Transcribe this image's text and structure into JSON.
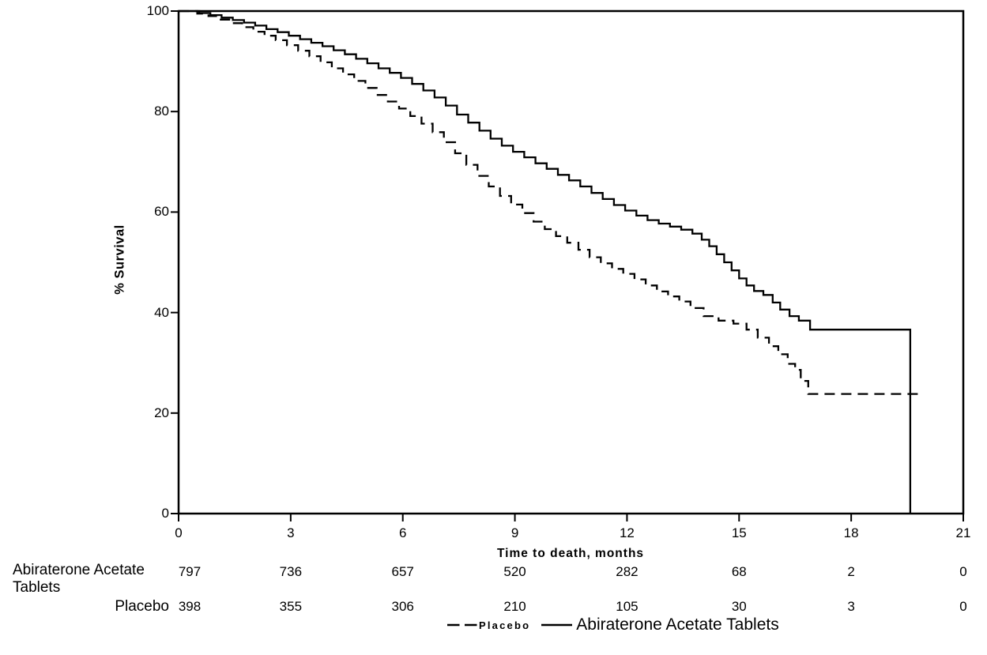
{
  "chart_data": {
    "type": "line",
    "subtype": "kaplan-meier-step",
    "title": "",
    "xlabel": "Time to death, months",
    "ylabel": "% Survival",
    "xlim": [
      0,
      21
    ],
    "ylim": [
      0,
      100
    ],
    "x_ticks": [
      0,
      3,
      6,
      9,
      12,
      15,
      18,
      21
    ],
    "y_ticks": [
      0,
      20,
      40,
      60,
      80,
      100
    ],
    "grid": false,
    "legend_position": "bottom",
    "frame": true,
    "line_color": "#000000",
    "series": [
      {
        "name": "Abiraterone Acetate Tablets",
        "line": "solid",
        "step": true,
        "points": [
          [
            0,
            100
          ],
          [
            0.55,
            99.6
          ],
          [
            0.85,
            99.2
          ],
          [
            1.15,
            98.7
          ],
          [
            1.45,
            98.2
          ],
          [
            1.75,
            97.7
          ],
          [
            2.05,
            97.1
          ],
          [
            2.35,
            96.4
          ],
          [
            2.65,
            95.8
          ],
          [
            2.95,
            95.1
          ],
          [
            3.25,
            94.4
          ],
          [
            3.55,
            93.7
          ],
          [
            3.85,
            93.0
          ],
          [
            4.15,
            92.2
          ],
          [
            4.45,
            91.4
          ],
          [
            4.75,
            90.5
          ],
          [
            5.05,
            89.6
          ],
          [
            5.35,
            88.6
          ],
          [
            5.65,
            87.7
          ],
          [
            5.95,
            86.7
          ],
          [
            6.25,
            85.5
          ],
          [
            6.55,
            84.2
          ],
          [
            6.85,
            82.8
          ],
          [
            7.15,
            81.2
          ],
          [
            7.45,
            79.4
          ],
          [
            7.75,
            77.8
          ],
          [
            8.05,
            76.2
          ],
          [
            8.35,
            74.6
          ],
          [
            8.65,
            73.2
          ],
          [
            8.95,
            72.0
          ],
          [
            9.25,
            70.9
          ],
          [
            9.55,
            69.7
          ],
          [
            9.85,
            68.6
          ],
          [
            10.15,
            67.4
          ],
          [
            10.45,
            66.3
          ],
          [
            10.75,
            65.1
          ],
          [
            11.05,
            63.8
          ],
          [
            11.35,
            62.6
          ],
          [
            11.65,
            61.4
          ],
          [
            11.95,
            60.3
          ],
          [
            12.25,
            59.3
          ],
          [
            12.55,
            58.4
          ],
          [
            12.85,
            57.7
          ],
          [
            13.15,
            57.1
          ],
          [
            13.45,
            56.5
          ],
          [
            13.75,
            55.7
          ],
          [
            14.0,
            54.5
          ],
          [
            14.2,
            53.2
          ],
          [
            14.4,
            51.6
          ],
          [
            14.6,
            50.0
          ],
          [
            14.8,
            48.4
          ],
          [
            15.0,
            46.8
          ],
          [
            15.2,
            45.4
          ],
          [
            15.4,
            44.3
          ],
          [
            15.65,
            43.5
          ],
          [
            15.9,
            42.0
          ],
          [
            16.1,
            40.6
          ],
          [
            16.35,
            39.3
          ],
          [
            16.6,
            38.4
          ],
          [
            16.9,
            36.6
          ],
          [
            19.58,
            0
          ]
        ]
      },
      {
        "name": "Placebo",
        "line": "dashed",
        "step": true,
        "points": [
          [
            0,
            100
          ],
          [
            0.5,
            99.5
          ],
          [
            0.8,
            99.0
          ],
          [
            1.1,
            98.3
          ],
          [
            1.4,
            97.6
          ],
          [
            1.7,
            96.8
          ],
          [
            2.0,
            95.9
          ],
          [
            2.3,
            95.1
          ],
          [
            2.6,
            94.2
          ],
          [
            2.9,
            93.2
          ],
          [
            3.2,
            92.1
          ],
          [
            3.5,
            91.0
          ],
          [
            3.8,
            89.8
          ],
          [
            4.1,
            88.6
          ],
          [
            4.4,
            87.4
          ],
          [
            4.7,
            86.1
          ],
          [
            5.0,
            84.7
          ],
          [
            5.3,
            83.3
          ],
          [
            5.6,
            82.0
          ],
          [
            5.9,
            80.6
          ],
          [
            6.2,
            79.1
          ],
          [
            6.5,
            77.6
          ],
          [
            6.8,
            75.9
          ],
          [
            7.1,
            73.9
          ],
          [
            7.4,
            71.7
          ],
          [
            7.7,
            69.4
          ],
          [
            8.0,
            67.2
          ],
          [
            8.3,
            65.1
          ],
          [
            8.6,
            63.2
          ],
          [
            8.9,
            61.5
          ],
          [
            9.2,
            59.8
          ],
          [
            9.5,
            58.1
          ],
          [
            9.8,
            56.6
          ],
          [
            10.1,
            55.2
          ],
          [
            10.4,
            53.9
          ],
          [
            10.7,
            52.5
          ],
          [
            11.0,
            51.0
          ],
          [
            11.3,
            49.8
          ],
          [
            11.6,
            48.7
          ],
          [
            11.9,
            47.7
          ],
          [
            12.2,
            46.6
          ],
          [
            12.5,
            45.4
          ],
          [
            12.8,
            44.2
          ],
          [
            13.1,
            43.2
          ],
          [
            13.4,
            42.2
          ],
          [
            13.7,
            40.9
          ],
          [
            14.05,
            39.3
          ],
          [
            14.45,
            38.4
          ],
          [
            14.85,
            37.8
          ],
          [
            15.2,
            36.6
          ],
          [
            15.5,
            35.0
          ],
          [
            15.8,
            33.3
          ],
          [
            16.05,
            31.7
          ],
          [
            16.3,
            29.8
          ],
          [
            16.5,
            28.6
          ],
          [
            16.65,
            26.4
          ],
          [
            16.85,
            23.8
          ],
          [
            19.8,
            23.8
          ]
        ]
      }
    ]
  },
  "at_risk": {
    "column_months": [
      0,
      3,
      6,
      9,
      12,
      15,
      18,
      21
    ],
    "rows": [
      {
        "label": "Abiraterone Acetate Tablets",
        "counts": [
          "797",
          "736",
          "657",
          "520",
          "282",
          "68",
          "2",
          "0"
        ]
      },
      {
        "label": "Placebo",
        "counts": [
          "398",
          "355",
          "306",
          "210",
          "105",
          "30",
          "3",
          "0"
        ]
      }
    ]
  },
  "legend": {
    "items": [
      {
        "label": "Placebo",
        "style": "dashed"
      },
      {
        "label": "Abiraterone Acetate Tablets",
        "style": "solid"
      }
    ]
  }
}
